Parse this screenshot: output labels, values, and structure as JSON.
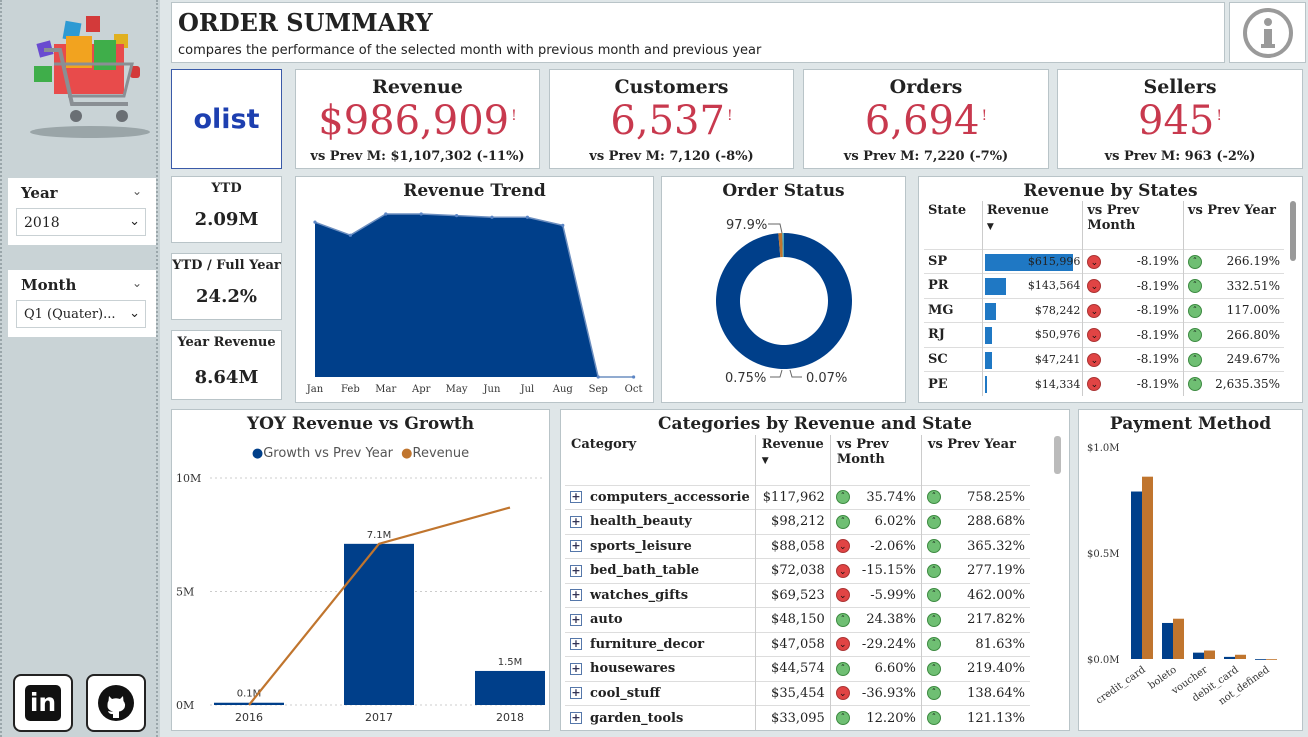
{
  "header": {
    "title": "ORDER SUMMARY",
    "subtitle": "compares the performance of the selected month with previous month and previous year"
  },
  "logo": {
    "text": "olist"
  },
  "slicers": {
    "year": {
      "label": "Year",
      "value": "2018"
    },
    "month": {
      "label": "Month",
      "value": "Q1 (Quater)..."
    }
  },
  "kpis": [
    {
      "title": "Revenue",
      "value": "$986,909",
      "sub": "vs Prev M: $1,107,302 (-11%)"
    },
    {
      "title": "Customers",
      "value": "6,537",
      "sub": "vs Prev M: 7,120 (-8%)"
    },
    {
      "title": "Orders",
      "value": "6,694",
      "sub": "vs Prev M: 7,220 (-7%)"
    },
    {
      "title": "Sellers",
      "value": "945",
      "sub": "vs Prev M: 963 (-2%)"
    }
  ],
  "kpi_excl": "!",
  "side_kpis": [
    {
      "title": "YTD",
      "value": "2.09M"
    },
    {
      "title": "YTD / Full Year",
      "value": "24.2%"
    },
    {
      "title": "Year Revenue",
      "value": "8.64M"
    }
  ],
  "revenue_trend": {
    "title": "Revenue Trend",
    "chart_data": {
      "type": "area",
      "categories": [
        "Jan",
        "Feb",
        "Mar",
        "Apr",
        "May",
        "Jun",
        "Jul",
        "Aug",
        "Sep",
        "Oct"
      ],
      "values": [
        0.95,
        0.87,
        1.0,
        1.0,
        0.99,
        0.98,
        0.98,
        0.93,
        0.0,
        0.0
      ],
      "color": "#003f8a"
    }
  },
  "order_status": {
    "title": "Order Status",
    "chart_data": {
      "type": "pie",
      "labels": [
        "97.9%",
        "0.75%",
        "0.07%"
      ],
      "values": [
        97.9,
        0.75,
        0.07
      ],
      "colors": [
        "#003f8a",
        "#c0752e",
        "#4aa0b5"
      ]
    }
  },
  "states": {
    "title": "Revenue by States",
    "columns": [
      "State",
      "Revenue",
      "vs Prev Month",
      "vs Prev Year"
    ],
    "rows": [
      {
        "state": "SP",
        "revenue": "$615,996",
        "rev_value": 615996,
        "pm": "-8.19%",
        "py": "266.19%"
      },
      {
        "state": "PR",
        "revenue": "$143,564",
        "rev_value": 143564,
        "pm": "-8.19%",
        "py": "332.51%"
      },
      {
        "state": "MG",
        "revenue": "$78,242",
        "rev_value": 78242,
        "pm": "-8.19%",
        "py": "117.00%"
      },
      {
        "state": "RJ",
        "revenue": "$50,976",
        "rev_value": 50976,
        "pm": "-8.19%",
        "py": "266.80%"
      },
      {
        "state": "SC",
        "revenue": "$47,241",
        "rev_value": 47241,
        "pm": "-8.19%",
        "py": "249.67%"
      },
      {
        "state": "PE",
        "revenue": "$14,334",
        "rev_value": 14334,
        "pm": "-8.19%",
        "py": "2,635.35%"
      }
    ]
  },
  "yoy": {
    "title": "YOY Revenue vs Growth",
    "legend": [
      "Growth vs Prev Year",
      "Revenue"
    ],
    "chart_data": {
      "type": "bar",
      "categories": [
        "2016",
        "2017",
        "2018"
      ],
      "series": [
        {
          "name": "Growth vs Prev Year",
          "values": [
            0.1,
            7.1,
            1.5
          ]
        },
        {
          "name": "Revenue",
          "values": [
            0.0,
            7.1,
            8.7
          ]
        }
      ],
      "bar_labels": [
        "0.1M",
        "7.1M",
        "1.5M"
      ],
      "yticks": [
        "10M",
        "5M",
        "0M"
      ],
      "ylim": [
        0,
        10
      ]
    }
  },
  "categories": {
    "title": "Categories by Revenue and State",
    "columns": [
      "Category",
      "Revenue",
      "vs Prev Month",
      "vs Prev Year"
    ],
    "rows": [
      {
        "name": "computers_accessorie",
        "revenue": "$117,962",
        "pm": "35.74%",
        "pm_up": true,
        "py": "758.25%"
      },
      {
        "name": "health_beauty",
        "revenue": "$98,212",
        "pm": "6.02%",
        "pm_up": true,
        "py": "288.68%"
      },
      {
        "name": "sports_leisure",
        "revenue": "$88,058",
        "pm": "-2.06%",
        "pm_up": false,
        "py": "365.32%"
      },
      {
        "name": "bed_bath_table",
        "revenue": "$72,038",
        "pm": "-15.15%",
        "pm_up": false,
        "py": "277.19%"
      },
      {
        "name": "watches_gifts",
        "revenue": "$69,523",
        "pm": "-5.99%",
        "pm_up": false,
        "py": "462.00%"
      },
      {
        "name": "auto",
        "revenue": "$48,150",
        "pm": "24.38%",
        "pm_up": true,
        "py": "217.82%"
      },
      {
        "name": "furniture_decor",
        "revenue": "$47,058",
        "pm": "-29.24%",
        "pm_up": false,
        "py": "81.63%"
      },
      {
        "name": "housewares",
        "revenue": "$44,574",
        "pm": "6.60%",
        "pm_up": true,
        "py": "219.40%"
      },
      {
        "name": "cool_stuff",
        "revenue": "$35,454",
        "pm": "-36.93%",
        "pm_up": false,
        "py": "138.64%"
      },
      {
        "name": "garden_tools",
        "revenue": "$33,095",
        "pm": "12.20%",
        "pm_up": true,
        "py": "121.13%"
      }
    ]
  },
  "payment": {
    "title": "Payment Method",
    "chart_data": {
      "type": "bar",
      "categories": [
        "credit_card",
        "boleto",
        "voucher",
        "debit_card",
        "not_defined"
      ],
      "series": [
        {
          "values": [
            0.79,
            0.17,
            0.03,
            0.01,
            0.0
          ]
        },
        {
          "values": [
            0.86,
            0.19,
            0.04,
            0.02,
            0.0
          ]
        }
      ],
      "colors": [
        "#003f8a",
        "#c0752e"
      ],
      "yticks": [
        "$1.0M",
        "$0.5M",
        "$0.0M"
      ],
      "ylim": [
        0,
        1.0
      ]
    }
  },
  "social": {
    "linkedin": "in"
  }
}
